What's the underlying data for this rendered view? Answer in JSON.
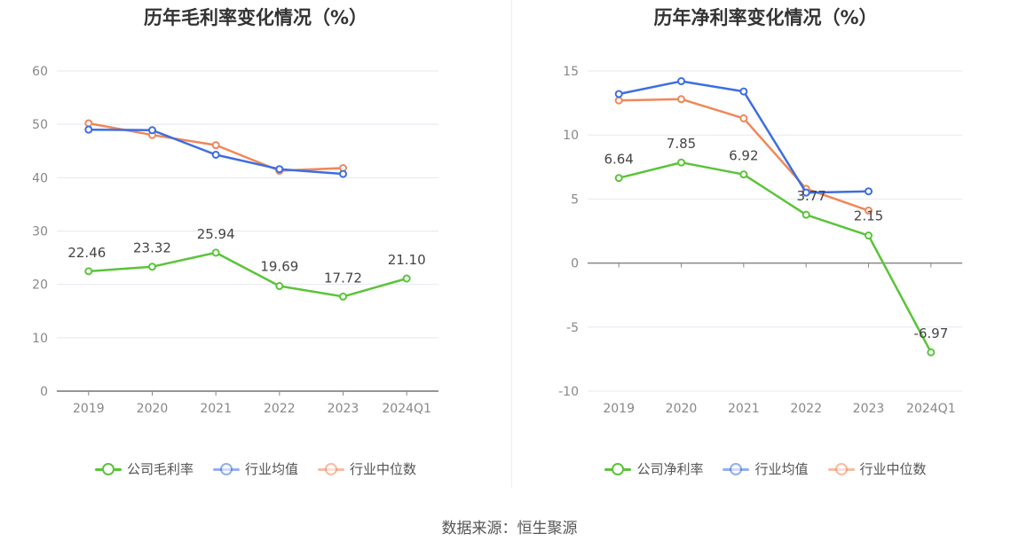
{
  "source": "数据来源：恒生聚源",
  "chart_data": [
    {
      "type": "line",
      "title": "历年毛利率变化情况（%）",
      "categories": [
        "2019",
        "2020",
        "2021",
        "2022",
        "2023",
        "2024Q1"
      ],
      "yticks": [
        "0",
        "10",
        "20",
        "30",
        "40",
        "50",
        "60"
      ],
      "ylim": [
        0,
        60
      ],
      "series": [
        {
          "name": "公司毛利率",
          "color": "#5ac43a",
          "values": [
            22.46,
            23.32,
            25.94,
            19.69,
            17.72,
            21.1
          ],
          "labels": [
            "22.46",
            "23.32",
            "25.94",
            "19.69",
            "17.72",
            "21.10"
          ]
        },
        {
          "name": "行业均值",
          "color": "#3d6ee0",
          "values": [
            49.0,
            48.9,
            44.3,
            41.6,
            40.7,
            null
          ],
          "labels": []
        },
        {
          "name": "行业中位数",
          "color": "#f0875a",
          "values": [
            50.2,
            48.0,
            46.1,
            41.3,
            41.8,
            null
          ],
          "labels": []
        }
      ],
      "grid": true
    },
    {
      "type": "line",
      "title": "历年净利率变化情况（%）",
      "categories": [
        "2019",
        "2020",
        "2021",
        "2022",
        "2023",
        "2024Q1"
      ],
      "yticks": [
        "-10",
        "-5",
        "0",
        "5",
        "10",
        "15"
      ],
      "ylim": [
        -10,
        15
      ],
      "series": [
        {
          "name": "公司净利率",
          "color": "#5ac43a",
          "values": [
            6.64,
            7.85,
            6.92,
            3.77,
            2.15,
            -6.97
          ],
          "labels": [
            "6.64",
            "7.85",
            "6.92",
            "3.77",
            "2.15",
            "-6.97"
          ]
        },
        {
          "name": "行业均值",
          "color": "#3d6ee0",
          "values": [
            13.2,
            14.2,
            13.4,
            5.5,
            5.6,
            null
          ],
          "labels": []
        },
        {
          "name": "行业中位数",
          "color": "#f0875a",
          "values": [
            12.7,
            12.8,
            11.3,
            5.8,
            4.1,
            null
          ],
          "labels": []
        }
      ],
      "grid": true
    }
  ]
}
